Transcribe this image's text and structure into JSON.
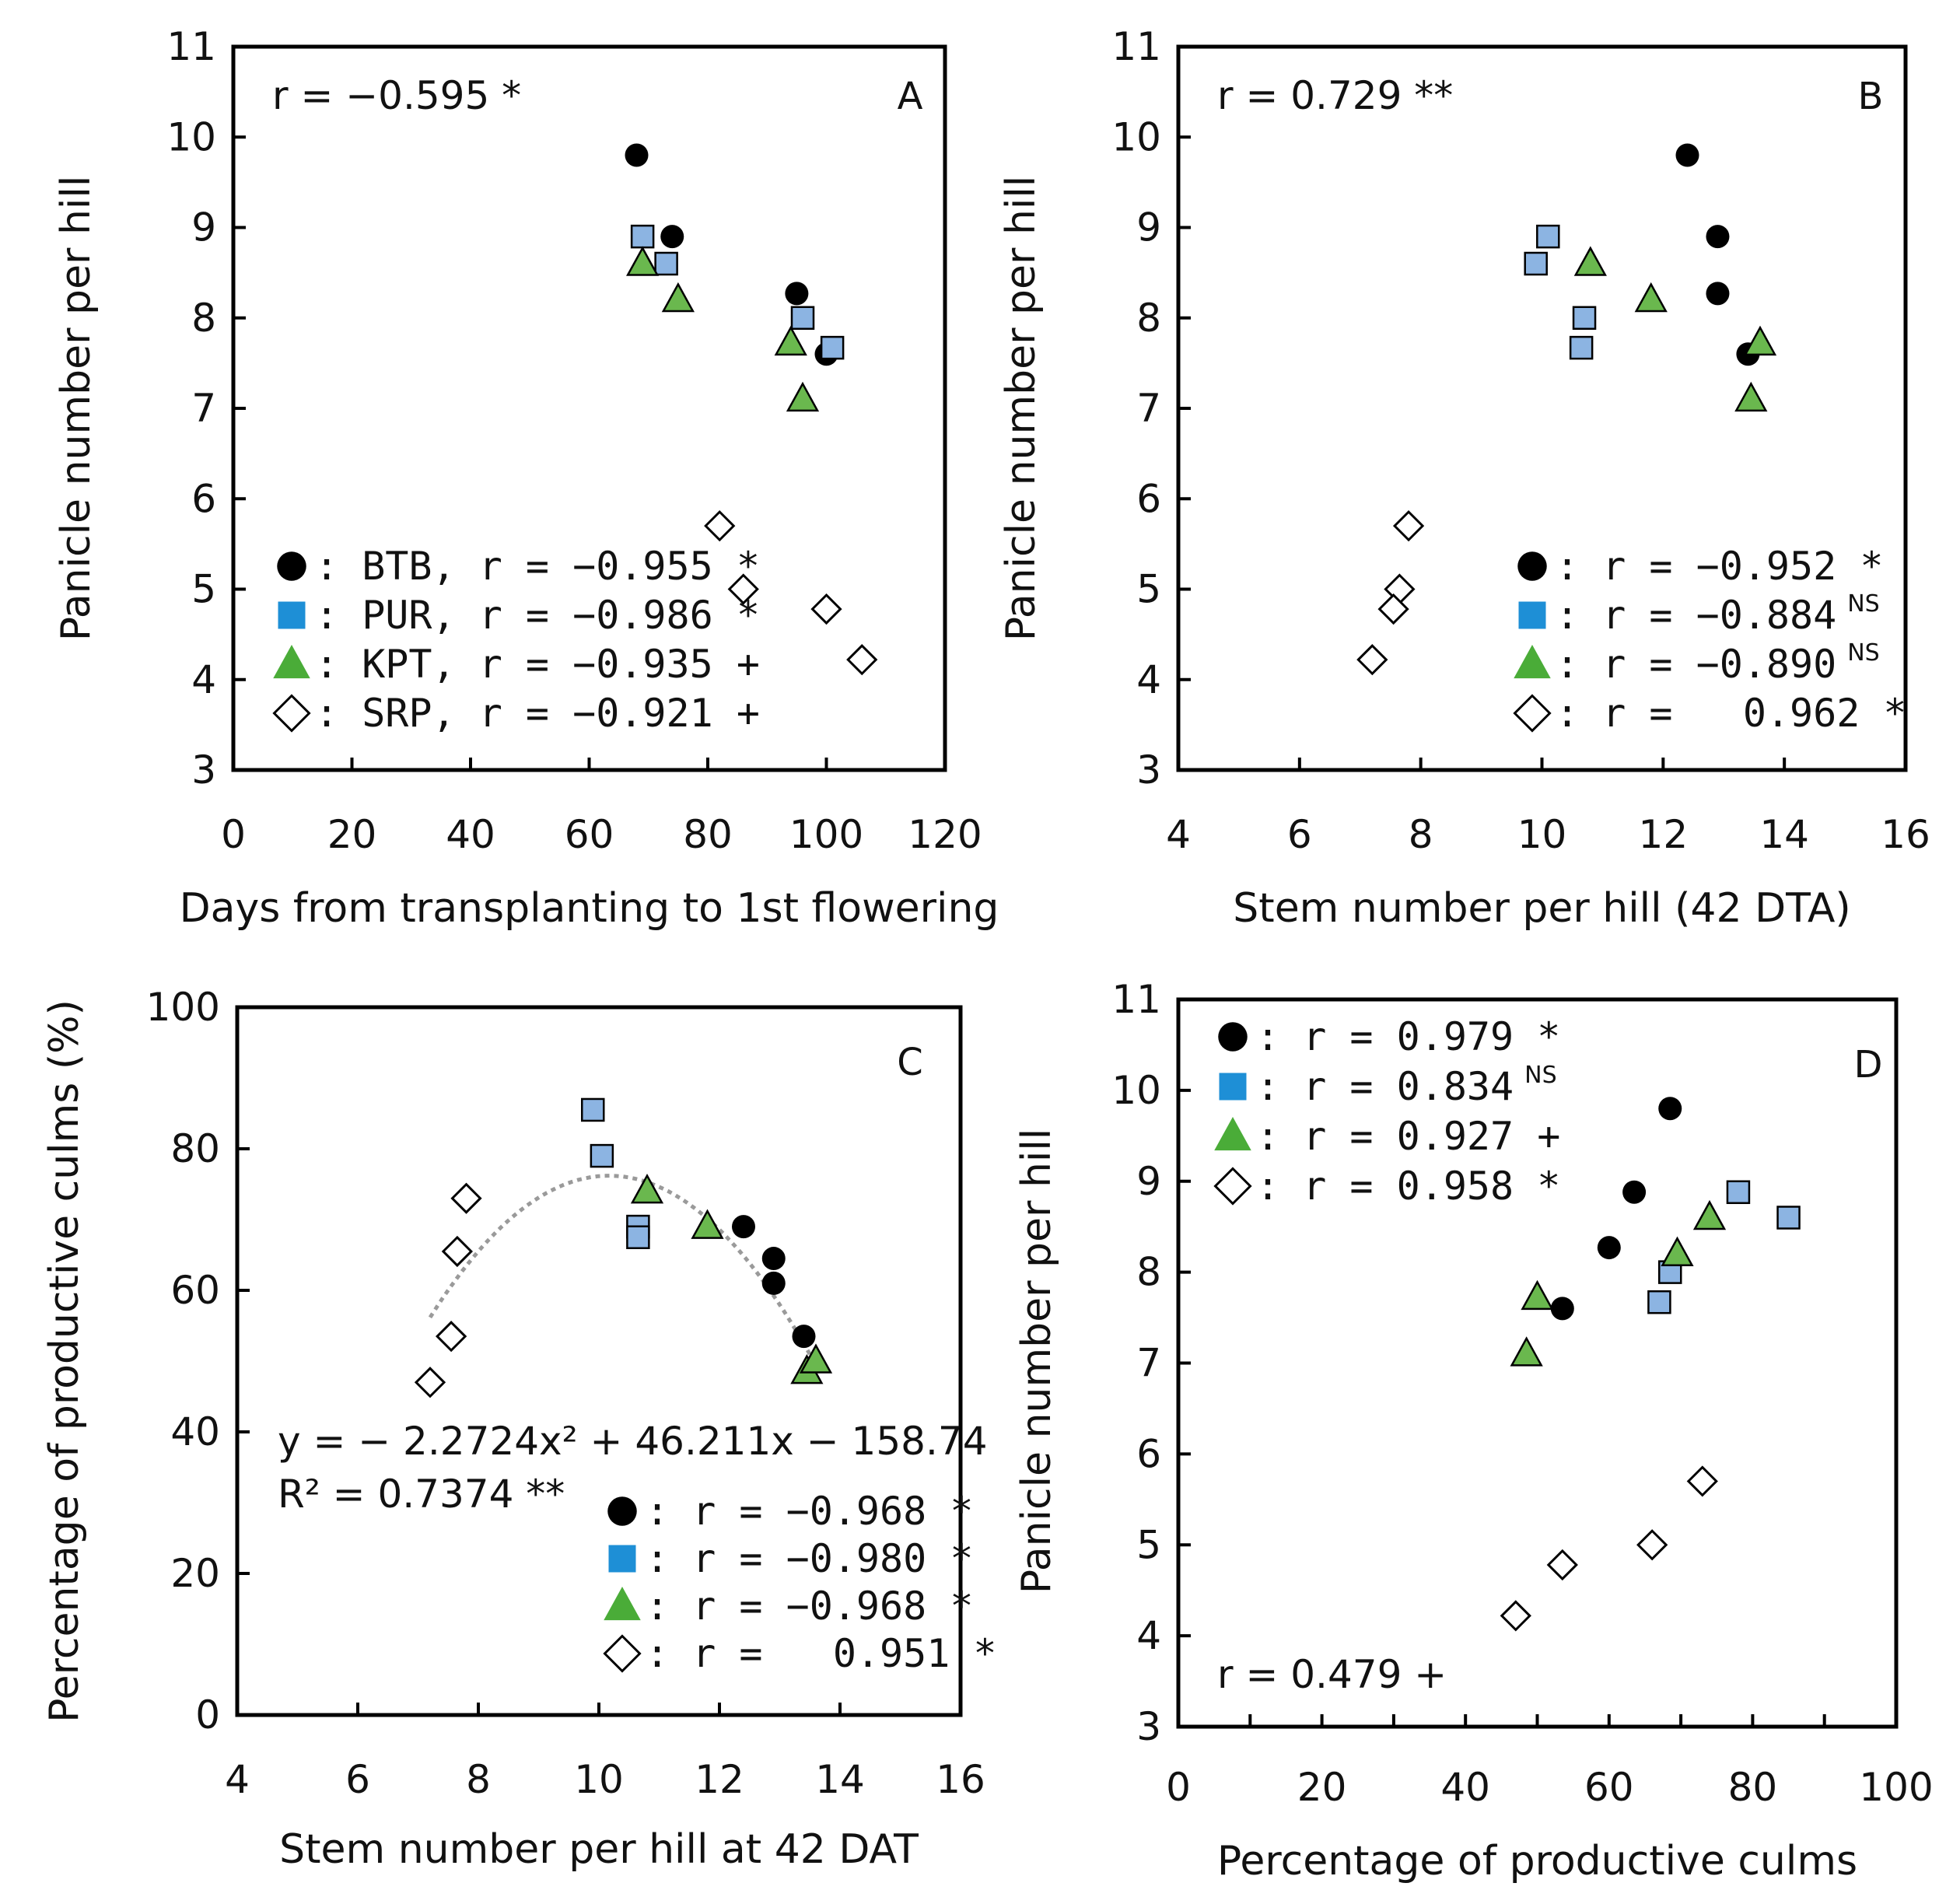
{
  "colors": {
    "BTB": "#000000",
    "PUR": "#8cb4e2",
    "KPT": "#6ab84e",
    "SRP": "#ffffff",
    "legend_PUR": "#1e8fd6",
    "legend_KPT": "#4aac38",
    "trend": "#9a9a9a"
  },
  "chart_data": [
    {
      "id": "A",
      "type": "scatter",
      "panel_letter": "A",
      "xlabel": "Days from transplanting to 1st flowering",
      "ylabel": "Panicle number per hill",
      "xlim": [
        0,
        120
      ],
      "ylim": [
        3,
        11
      ],
      "xticks": [
        0,
        20,
        40,
        60,
        80,
        100,
        120
      ],
      "yticks": [
        3,
        4,
        5,
        6,
        7,
        8,
        9,
        10,
        11
      ],
      "overall_r": "r = −0.595 *",
      "series": [
        {
          "name": "BTB",
          "marker": "circle",
          "points": [
            [
              68,
              9.8
            ],
            [
              74,
              8.9
            ],
            [
              95,
              8.27
            ],
            [
              100,
              7.6
            ]
          ]
        },
        {
          "name": "PUR",
          "marker": "square",
          "points": [
            [
              69,
              8.9
            ],
            [
              73,
              8.6
            ],
            [
              96,
              8.0
            ],
            [
              101,
              7.67
            ]
          ]
        },
        {
          "name": "KPT",
          "marker": "triangle",
          "points": [
            [
              69,
              8.6
            ],
            [
              75,
              8.2
            ],
            [
              94,
              7.72
            ],
            [
              96,
              7.1
            ]
          ]
        },
        {
          "name": "SRP",
          "marker": "diamond",
          "points": [
            [
              82,
              5.7
            ],
            [
              86,
              5.0
            ],
            [
              100,
              4.78
            ],
            [
              106,
              4.22
            ]
          ]
        }
      ],
      "legend": [
        {
          "series": "BTB",
          "text": ": BTB, r = −0.955 *",
          "sup": ""
        },
        {
          "series": "PUR",
          "text": ": PUR, r = −0.986 *",
          "sup": ""
        },
        {
          "series": "KPT",
          "text": ": KPT, r = −0.935 +",
          "sup": ""
        },
        {
          "series": "SRP",
          "text": ": SRP, r = −0.921 +",
          "sup": ""
        }
      ]
    },
    {
      "id": "B",
      "type": "scatter",
      "panel_letter": "B",
      "xlabel": "Stem number per hill (42 DTA)",
      "ylabel": "Panicle number per hill",
      "xlim": [
        4,
        16
      ],
      "ylim": [
        3,
        11
      ],
      "xticks": [
        4,
        6,
        8,
        10,
        12,
        14,
        16
      ],
      "yticks": [
        3,
        4,
        5,
        6,
        7,
        8,
        9,
        10,
        11
      ],
      "overall_r": "r = 0.729 **",
      "series": [
        {
          "name": "BTB",
          "marker": "circle",
          "points": [
            [
              12.4,
              9.8
            ],
            [
              12.9,
              8.9
            ],
            [
              12.9,
              8.27
            ],
            [
              13.4,
              7.6
            ]
          ]
        },
        {
          "name": "PUR",
          "marker": "square",
          "points": [
            [
              10.1,
              8.9
            ],
            [
              9.9,
              8.6
            ],
            [
              10.7,
              8.0
            ],
            [
              10.65,
              7.67
            ]
          ]
        },
        {
          "name": "KPT",
          "marker": "triangle",
          "points": [
            [
              10.8,
              8.6
            ],
            [
              11.8,
              8.2
            ],
            [
              13.6,
              7.72
            ],
            [
              13.45,
              7.1
            ]
          ]
        },
        {
          "name": "SRP",
          "marker": "diamond",
          "points": [
            [
              7.8,
              5.7
            ],
            [
              7.65,
              5.0
            ],
            [
              7.55,
              4.78
            ],
            [
              7.2,
              4.22
            ]
          ]
        }
      ],
      "legend": [
        {
          "series": "BTB",
          "text": ": r = −0.952 *",
          "sup": ""
        },
        {
          "series": "PUR",
          "text": ": r = −0.884",
          "sup": "NS"
        },
        {
          "series": "KPT",
          "text": ": r = −0.890",
          "sup": "NS"
        },
        {
          "series": "SRP",
          "text": ": r =   0.962 *",
          "sup": ""
        }
      ]
    },
    {
      "id": "C",
      "type": "scatter",
      "panel_letter": "C",
      "xlabel": "Stem number per hill at 42 DAT",
      "ylabel": "Percentage of productive culms (%)",
      "xlim": [
        4,
        16
      ],
      "ylim": [
        0,
        100
      ],
      "xticks": [
        4,
        6,
        8,
        10,
        12,
        14,
        16
      ],
      "yticks": [
        0,
        20,
        40,
        60,
        80,
        100
      ],
      "equation": "y = − 2.2724x² + 46.211x − 158.74",
      "r_squared": "R² = 0.7374 **",
      "trend": {
        "a": -2.2724,
        "b": 46.211,
        "c": -158.74,
        "x_from": 7.2,
        "x_to": 13.6
      },
      "series": [
        {
          "name": "BTB",
          "marker": "circle",
          "points": [
            [
              12.4,
              69
            ],
            [
              12.9,
              64.5
            ],
            [
              12.9,
              61
            ],
            [
              13.4,
              53.5
            ]
          ]
        },
        {
          "name": "PUR",
          "marker": "square",
          "points": [
            [
              9.9,
              85.5
            ],
            [
              10.05,
              79
            ],
            [
              10.65,
              69
            ],
            [
              10.65,
              67.5
            ]
          ]
        },
        {
          "name": "KPT",
          "marker": "triangle",
          "points": [
            [
              10.8,
              74
            ],
            [
              11.8,
              69
            ],
            [
              13.45,
              48.5
            ],
            [
              13.6,
              50
            ]
          ]
        },
        {
          "name": "SRP",
          "marker": "diamond",
          "points": [
            [
              7.2,
              47
            ],
            [
              7.55,
              53.5
            ],
            [
              7.65,
              65.5
            ],
            [
              7.8,
              73
            ]
          ]
        }
      ],
      "legend": [
        {
          "series": "BTB",
          "text": ": r = −0.968 *",
          "sup": ""
        },
        {
          "series": "PUR",
          "text": ": r = −0.980 *",
          "sup": ""
        },
        {
          "series": "KPT",
          "text": ": r = −0.968 *",
          "sup": ""
        },
        {
          "series": "SRP",
          "text": ": r =   0.951 *",
          "sup": ""
        }
      ]
    },
    {
      "id": "D",
      "type": "scatter",
      "panel_letter": "D",
      "xlabel": "Percentage of productive culms",
      "ylabel": "Panicle number per hill",
      "xlim": [
        0,
        100
      ],
      "ylim": [
        3,
        11
      ],
      "xticks": [
        0,
        20,
        40,
        60,
        80,
        100
      ],
      "yticks": [
        3,
        4,
        5,
        6,
        7,
        8,
        9,
        10,
        11
      ],
      "overall_r": "r = 0.479 +",
      "series": [
        {
          "name": "BTB",
          "marker": "circle",
          "points": [
            [
              68.5,
              9.8
            ],
            [
              63.5,
              8.88
            ],
            [
              60,
              8.27
            ],
            [
              53.5,
              7.6
            ]
          ]
        },
        {
          "name": "PUR",
          "marker": "square",
          "points": [
            [
              78,
              8.88
            ],
            [
              85,
              8.6
            ],
            [
              68.5,
              8.0
            ],
            [
              67,
              7.67
            ]
          ]
        },
        {
          "name": "KPT",
          "marker": "triangle",
          "points": [
            [
              74,
              8.6
            ],
            [
              69.5,
              8.2
            ],
            [
              50,
              7.72
            ],
            [
              48.5,
              7.1
            ]
          ]
        },
        {
          "name": "SRP",
          "marker": "diamond",
          "points": [
            [
              73,
              5.7
            ],
            [
              66,
              5.0
            ],
            [
              53.5,
              4.78
            ],
            [
              47,
              4.22
            ]
          ]
        }
      ],
      "legend": [
        {
          "series": "BTB",
          "text": ": r = 0.979 *",
          "sup": ""
        },
        {
          "series": "PUR",
          "text": ": r = 0.834",
          "sup": "NS"
        },
        {
          "series": "KPT",
          "text": ": r = 0.927 +",
          "sup": ""
        },
        {
          "series": "SRP",
          "text": ": r = 0.958 *",
          "sup": ""
        }
      ]
    }
  ]
}
